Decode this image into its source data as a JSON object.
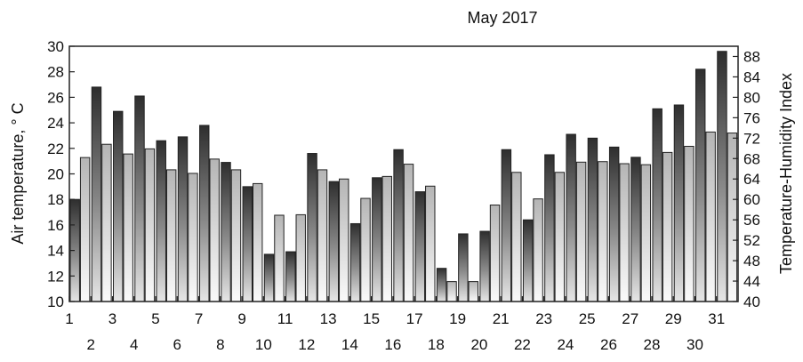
{
  "chart_data": {
    "type": "bar",
    "title": "May  2017",
    "xlabel": "",
    "ylabel": "Air temperature, ° C",
    "ylabel_right": "Temperature-Humidity Index",
    "ylim": [
      10,
      30
    ],
    "ylim_right": [
      40,
      90
    ],
    "y_ticks": [
      "10",
      "12",
      "14",
      "16",
      "18",
      "20",
      "22",
      "24",
      "26",
      "28",
      "30"
    ],
    "y_right_ticks": [
      "40",
      "44",
      "48",
      "52",
      "56",
      "60",
      "64",
      "68",
      "72",
      "76",
      "80",
      "84",
      "88"
    ],
    "x_ticks_top": [
      "1",
      "3",
      "5",
      "7",
      "9",
      "11",
      "13",
      "15",
      "17",
      "19",
      "21",
      "23",
      "25",
      "27",
      "29",
      "31"
    ],
    "x_ticks_bottom": [
      "2",
      "4",
      "6",
      "8",
      "10",
      "12",
      "14",
      "16",
      "18",
      "20",
      "22",
      "24",
      "26",
      "28",
      "30"
    ],
    "categories": [
      1,
      2,
      3,
      4,
      5,
      6,
      7,
      8,
      9,
      10,
      11,
      12,
      13,
      14,
      15,
      16,
      17,
      18,
      19,
      20,
      21,
      22,
      23,
      24,
      25,
      26,
      27,
      28,
      29,
      30,
      31
    ],
    "series": [
      {
        "axis": "left",
        "values": [
          18.0,
          26.8,
          24.9,
          26.1,
          22.6,
          22.9,
          23.8,
          20.9,
          19.0,
          13.7,
          13.9,
          21.6,
          19.4,
          16.1,
          19.7,
          21.9,
          18.6,
          12.6,
          15.3,
          15.5,
          21.9,
          16.4,
          21.5,
          23.1,
          22.8,
          22.1,
          21.3,
          25.1,
          25.4,
          28.2,
          29.6
        ],
        "color": "#3a3a3a"
      },
      {
        "axis": "right",
        "values": [
          68.2,
          70.8,
          68.9,
          69.9,
          65.8,
          65.1,
          67.9,
          65.8,
          63.1,
          56.9,
          57.0,
          65.8,
          64.0,
          60.2,
          64.5,
          66.9,
          62.6,
          43.9,
          43.9,
          58.9,
          65.3,
          60.1,
          65.3,
          67.3,
          67.4,
          67.0,
          66.8,
          69.2,
          70.4,
          73.2,
          73.0
        ],
        "color": "#c0c0c0"
      }
    ],
    "grid": false,
    "legend": "none"
  }
}
